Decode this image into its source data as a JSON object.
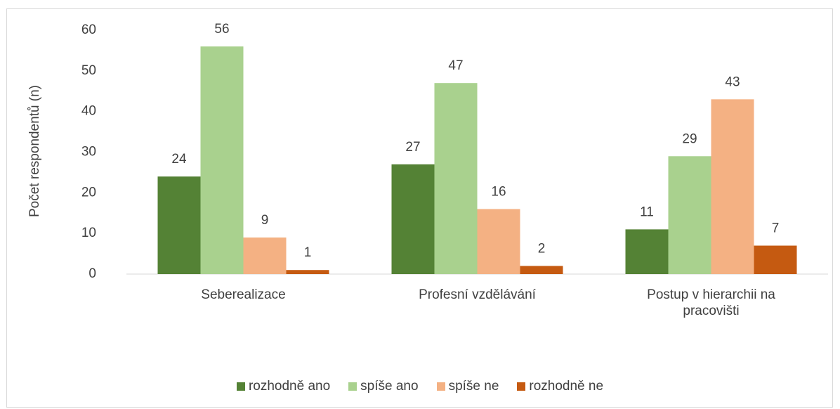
{
  "chart_data": {
    "type": "bar",
    "y_label": "Počet respondentů (n)",
    "categories": [
      "Seberealizace",
      "Profesní vzdělávání",
      "Postup v hierarchii na pracovišti"
    ],
    "series": [
      {
        "name": "rozhodně ano",
        "color": "#548235",
        "values": [
          24,
          27,
          11
        ]
      },
      {
        "name": "spíše ano",
        "color": "#a9d18e",
        "values": [
          56,
          47,
          29
        ]
      },
      {
        "name": "spíše ne",
        "color": "#f4b183",
        "values": [
          9,
          16,
          43
        ]
      },
      {
        "name": "rozhodně ne",
        "color": "#c55a11",
        "values": [
          1,
          2,
          7
        ]
      }
    ],
    "ylim": [
      0,
      60
    ],
    "yticks": [
      0,
      10,
      20,
      30,
      40,
      50,
      60
    ],
    "grid": false,
    "legend": "bottom"
  }
}
